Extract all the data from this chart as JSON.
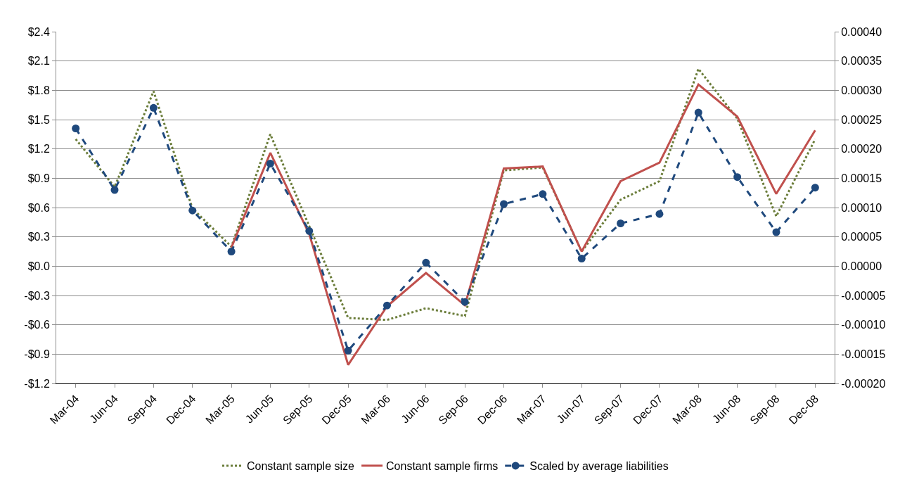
{
  "chart_data": {
    "type": "line",
    "categories": [
      "Mar-04",
      "Jun-04",
      "Sep-04",
      "Dec-04",
      "Mar-05",
      "Jun-05",
      "Sep-05",
      "Dec-05",
      "Mar-06",
      "Jun-06",
      "Sep-06",
      "Dec-06",
      "Mar-07",
      "Jun-07",
      "Sep-07",
      "Dec-07",
      "Mar-08",
      "Jun-08",
      "Sep-08",
      "Dec-08"
    ],
    "series": [
      {
        "name": "Constant sample size",
        "color": "#6b7d3a",
        "line_style": "dotted",
        "marker": "none",
        "values": [
          1.3,
          0.81,
          1.79,
          0.59,
          0.2,
          1.35,
          0.41,
          -0.53,
          -0.55,
          -0.43,
          -0.51,
          0.98,
          1.01,
          0.15,
          0.68,
          0.87,
          2.02,
          1.51,
          0.51,
          1.3
        ]
      },
      {
        "name": "Constant sample firms",
        "color": "#c0504d",
        "line_style": "solid",
        "marker": "none",
        "values": [
          null,
          null,
          null,
          null,
          0.19,
          1.16,
          0.33,
          -1.01,
          -0.41,
          -0.07,
          -0.4,
          1.0,
          1.02,
          0.15,
          0.87,
          1.06,
          1.86,
          1.53,
          0.74,
          1.39
        ]
      },
      {
        "name": "Scaled by average liabilities",
        "color": "#1f497d",
        "line_style": "dashed",
        "marker": "circle",
        "axis": "y2",
        "values": [
          0.000235,
          0.00013,
          0.00027,
          9.5e-05,
          2.5e-05,
          0.000175,
          6e-05,
          -0.000144,
          -6.7e-05,
          6e-06,
          -6.1e-05,
          0.000106,
          0.000123,
          1.3e-05,
          7.3e-05,
          8.9e-05,
          0.000262,
          0.000152,
          5.8e-05,
          0.000134
        ]
      }
    ],
    "ylim": [
      -1.2,
      2.4
    ],
    "yticks": [
      {
        "value": -1.2,
        "label": "-$1.2"
      },
      {
        "value": -0.9,
        "label": "-$0.9"
      },
      {
        "value": -0.6,
        "label": "-$0.6"
      },
      {
        "value": -0.3,
        "label": "-$0.3"
      },
      {
        "value": 0,
        "label": "$0.0"
      },
      {
        "value": 0.3,
        "label": "$0.3"
      },
      {
        "value": 0.6,
        "label": "$0.6"
      },
      {
        "value": 0.9,
        "label": "$0.9"
      },
      {
        "value": 1.2,
        "label": "$1.2"
      },
      {
        "value": 1.5,
        "label": "$1.5"
      },
      {
        "value": 1.8,
        "label": "$1.8"
      },
      {
        "value": 2.1,
        "label": "$2.1"
      },
      {
        "value": 2.4,
        "label": "$2.4"
      }
    ],
    "y2lim": [
      -0.0002,
      0.0004
    ],
    "y2ticks": [
      {
        "value": -0.0002,
        "label": "-0.00020"
      },
      {
        "value": -0.00015,
        "label": "-0.00015"
      },
      {
        "value": -0.0001,
        "label": "-0.00010"
      },
      {
        "value": -5e-05,
        "label": "-0.00005"
      },
      {
        "value": 0,
        "label": "0.00000"
      },
      {
        "value": 5e-05,
        "label": "0.00005"
      },
      {
        "value": 0.0001,
        "label": "0.00010"
      },
      {
        "value": 0.00015,
        "label": "0.00015"
      },
      {
        "value": 0.0002,
        "label": "0.00020"
      },
      {
        "value": 0.00025,
        "label": "0.00025"
      },
      {
        "value": 0.0003,
        "label": "0.00030"
      },
      {
        "value": 0.00035,
        "label": "0.00035"
      },
      {
        "value": 0.0004,
        "label": "0.00040"
      }
    ],
    "grid": "y",
    "legend": "bottom"
  }
}
